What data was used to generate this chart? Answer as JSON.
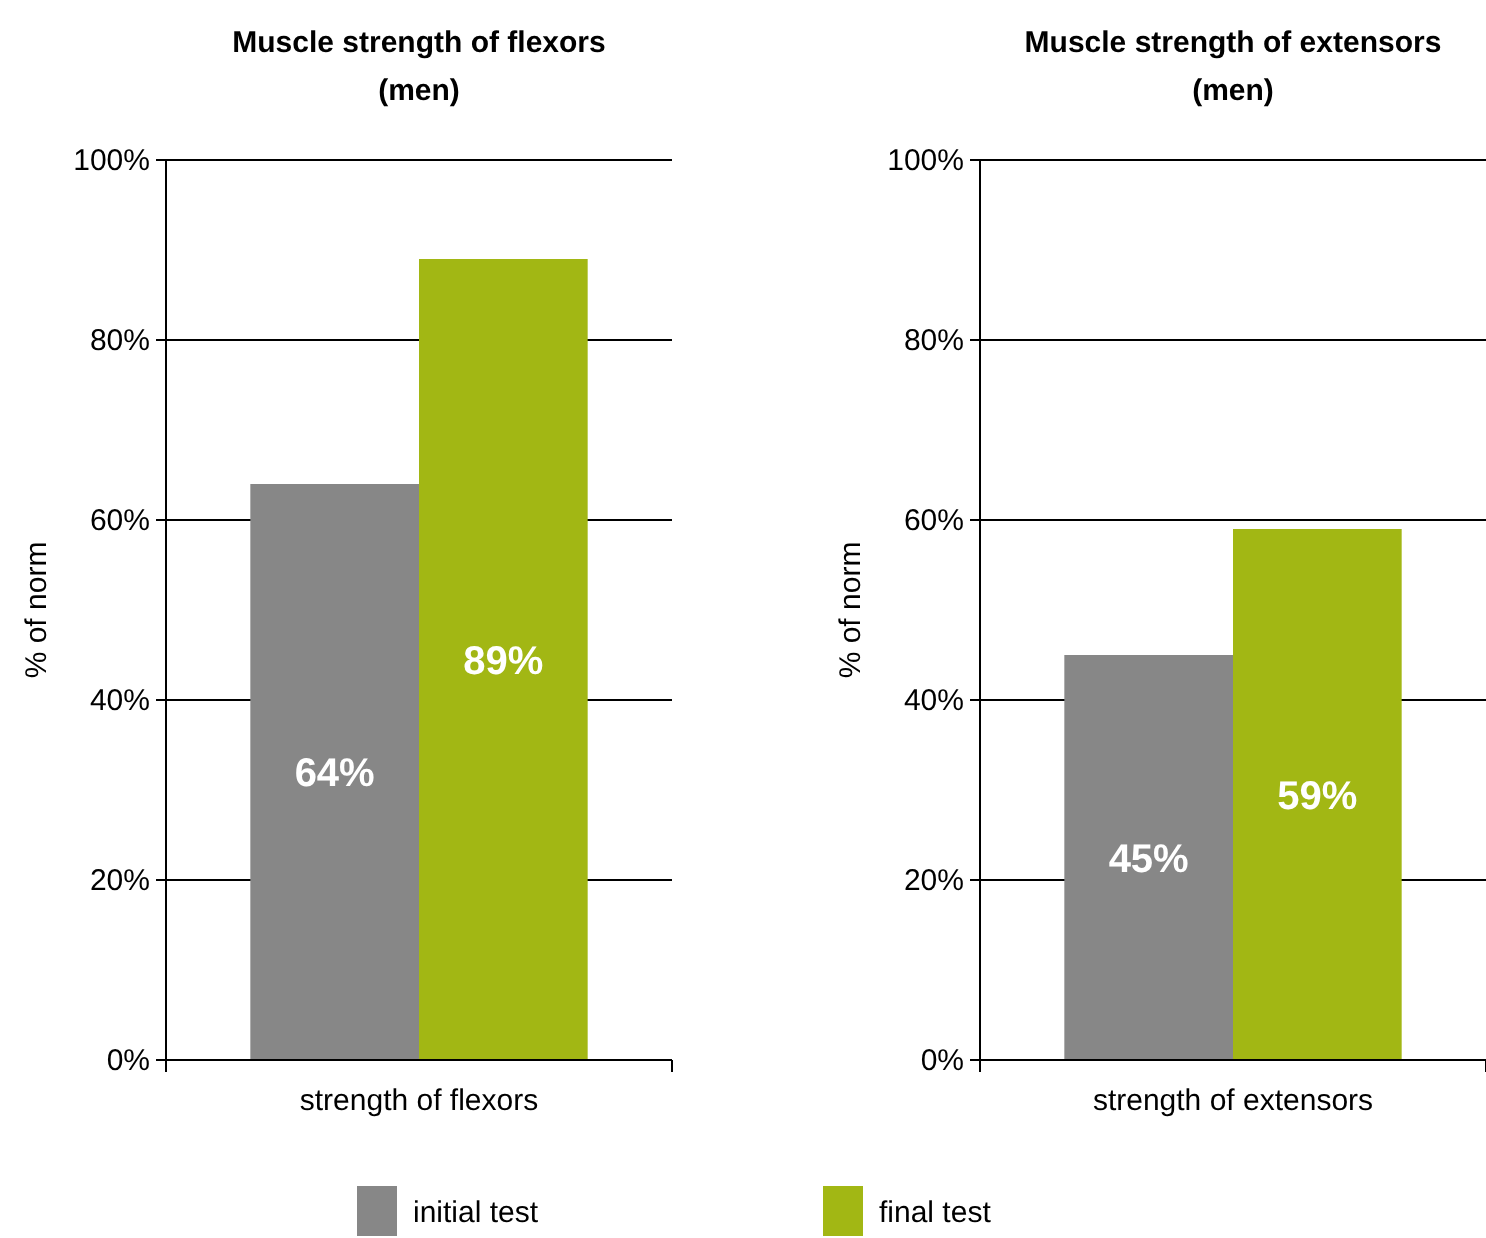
{
  "chart_data": [
    {
      "type": "bar",
      "title": "Muscle strength of flexors (men)",
      "ylabel": "% of norm",
      "categories": [
        "strength of flexors"
      ],
      "series": [
        {
          "name": "initial test",
          "color": "#878787",
          "values": [
            64
          ],
          "value_labels": [
            "64%"
          ]
        },
        {
          "name": "final test",
          "color": "#a2b714",
          "values": [
            89
          ],
          "value_labels": [
            "89%"
          ]
        }
      ],
      "ylim": [
        0,
        100
      ],
      "yticks": [
        {
          "value": 0,
          "label": "0%"
        },
        {
          "value": 20,
          "label": "20%"
        },
        {
          "value": 40,
          "label": "40%"
        },
        {
          "value": 60,
          "label": "60%"
        },
        {
          "value": 80,
          "label": "80%"
        },
        {
          "value": 100,
          "label": "100%"
        }
      ],
      "grid": "y",
      "legend": "bottom"
    },
    {
      "type": "bar",
      "title": "Muscle strength of extensors (men)",
      "ylabel": "% of norm",
      "categories": [
        "strength of extensors"
      ],
      "series": [
        {
          "color": "#878787",
          "values": [
            45
          ],
          "value_labels": [
            "45%"
          ]
        },
        {
          "color": "#a2b714",
          "values": [
            59
          ],
          "value_labels": [
            "59%"
          ]
        }
      ],
      "ylim": [
        0,
        100
      ],
      "yticks": [
        {
          "value": 0,
          "label": "0%"
        },
        {
          "value": 20,
          "label": "20%"
        },
        {
          "value": 40,
          "label": "40%"
        },
        {
          "value": 60,
          "label": "60%"
        },
        {
          "value": 80,
          "label": "80%"
        },
        {
          "value": 100,
          "label": "100%"
        }
      ],
      "grid": "y"
    }
  ]
}
